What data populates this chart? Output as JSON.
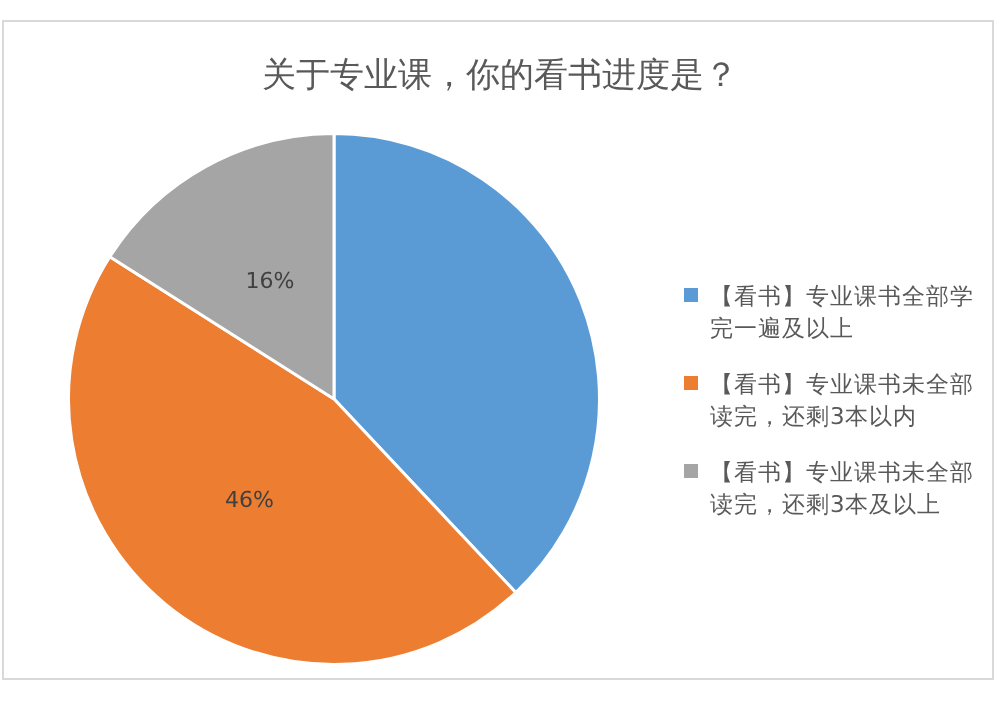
{
  "chart_data": {
    "type": "pie",
    "title": "关于专业课，你的看书进度是？",
    "categories": [
      "【看书】专业课书全部学完一遍及以上",
      "【看书】专业课书未全部读完，还剩3本以内",
      "【看书】专业课书未全部读完，还剩3本及以上"
    ],
    "values": [
      38,
      46,
      16
    ],
    "colors": [
      "#5b9bd5",
      "#ed7d31",
      "#a5a5a5"
    ],
    "value_labels": [
      null,
      "46%",
      "16%"
    ],
    "legend": "right"
  }
}
